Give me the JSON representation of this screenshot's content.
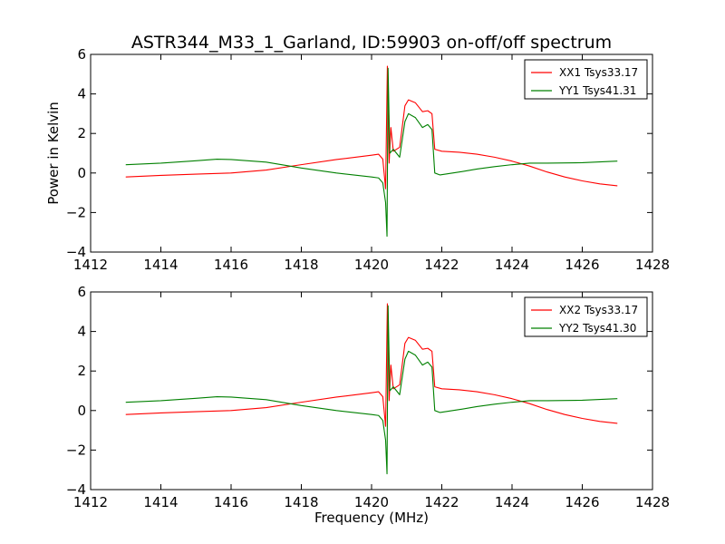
{
  "chart_data": [
    {
      "type": "line",
      "title": "ASTR344_M33_1_Garland, ID:59903 on-off/off spectrum",
      "ylabel": "Power in Kelvin",
      "xlabel": "",
      "xlim": [
        1412,
        1428
      ],
      "ylim": [
        -4,
        6
      ],
      "xticks": [
        "1412",
        "1414",
        "1416",
        "1418",
        "1420",
        "1422",
        "1424",
        "1426",
        "1428"
      ],
      "yticks": [
        "6",
        "4",
        "2",
        "0",
        "−2",
        "−4"
      ],
      "legend_position": "upper right",
      "grid": false,
      "series": [
        {
          "name": "XX1 Tsys33.17",
          "color": "#ff0000",
          "points": [
            [
              1413.0,
              -0.2
            ],
            [
              1414.0,
              -0.12
            ],
            [
              1415.0,
              -0.06
            ],
            [
              1416.0,
              0.0
            ],
            [
              1417.0,
              0.15
            ],
            [
              1418.0,
              0.42
            ],
            [
              1419.0,
              0.68
            ],
            [
              1420.0,
              0.9
            ],
            [
              1420.2,
              0.95
            ],
            [
              1420.32,
              0.7
            ],
            [
              1420.4,
              -0.8
            ],
            [
              1420.45,
              5.4
            ],
            [
              1420.5,
              0.5
            ],
            [
              1420.55,
              2.3
            ],
            [
              1420.62,
              1.1
            ],
            [
              1420.8,
              1.3
            ],
            [
              1420.95,
              3.4
            ],
            [
              1421.05,
              3.7
            ],
            [
              1421.25,
              3.55
            ],
            [
              1421.45,
              3.1
            ],
            [
              1421.6,
              3.15
            ],
            [
              1421.72,
              3.0
            ],
            [
              1421.8,
              1.2
            ],
            [
              1422.0,
              1.1
            ],
            [
              1422.5,
              1.05
            ],
            [
              1423.0,
              0.95
            ],
            [
              1423.5,
              0.8
            ],
            [
              1424.0,
              0.6
            ],
            [
              1424.5,
              0.35
            ],
            [
              1425.0,
              0.05
            ],
            [
              1425.5,
              -0.2
            ],
            [
              1426.0,
              -0.4
            ],
            [
              1426.5,
              -0.55
            ],
            [
              1427.0,
              -0.65
            ]
          ]
        },
        {
          "name": "YY1 Tsys41.31",
          "color": "#008000",
          "points": [
            [
              1413.0,
              0.42
            ],
            [
              1414.0,
              0.5
            ],
            [
              1415.0,
              0.62
            ],
            [
              1415.6,
              0.7
            ],
            [
              1416.0,
              0.68
            ],
            [
              1417.0,
              0.55
            ],
            [
              1418.0,
              0.25
            ],
            [
              1419.0,
              0.0
            ],
            [
              1420.0,
              -0.2
            ],
            [
              1420.2,
              -0.25
            ],
            [
              1420.32,
              -0.5
            ],
            [
              1420.4,
              -1.5
            ],
            [
              1420.44,
              -3.2
            ],
            [
              1420.47,
              5.3
            ],
            [
              1420.52,
              1.0
            ],
            [
              1420.62,
              1.2
            ],
            [
              1420.8,
              0.8
            ],
            [
              1420.95,
              2.6
            ],
            [
              1421.05,
              3.0
            ],
            [
              1421.25,
              2.8
            ],
            [
              1421.45,
              2.3
            ],
            [
              1421.6,
              2.45
            ],
            [
              1421.72,
              2.2
            ],
            [
              1421.8,
              0.0
            ],
            [
              1421.95,
              -0.1
            ],
            [
              1422.5,
              0.05
            ],
            [
              1423.0,
              0.2
            ],
            [
              1423.5,
              0.32
            ],
            [
              1424.0,
              0.42
            ],
            [
              1424.5,
              0.5
            ],
            [
              1425.0,
              0.5
            ],
            [
              1426.0,
              0.52
            ],
            [
              1427.0,
              0.6
            ]
          ]
        }
      ]
    },
    {
      "type": "line",
      "title": "",
      "ylabel": "",
      "xlabel": "Frequency (MHz)",
      "xlim": [
        1412,
        1428
      ],
      "ylim": [
        -4,
        6
      ],
      "xticks": [
        "1412",
        "1414",
        "1416",
        "1418",
        "1420",
        "1422",
        "1424",
        "1426",
        "1428"
      ],
      "yticks": [
        "6",
        "4",
        "2",
        "0",
        "−2",
        "−4"
      ],
      "legend_position": "upper right",
      "grid": false,
      "series": [
        {
          "name": "XX2 Tsys33.17",
          "color": "#ff0000",
          "points": [
            [
              1413.0,
              -0.2
            ],
            [
              1414.0,
              -0.12
            ],
            [
              1415.0,
              -0.06
            ],
            [
              1416.0,
              0.0
            ],
            [
              1417.0,
              0.15
            ],
            [
              1418.0,
              0.42
            ],
            [
              1419.0,
              0.68
            ],
            [
              1420.0,
              0.9
            ],
            [
              1420.2,
              0.95
            ],
            [
              1420.32,
              0.7
            ],
            [
              1420.4,
              -0.8
            ],
            [
              1420.45,
              5.4
            ],
            [
              1420.5,
              0.5
            ],
            [
              1420.55,
              2.3
            ],
            [
              1420.62,
              1.1
            ],
            [
              1420.8,
              1.3
            ],
            [
              1420.95,
              3.4
            ],
            [
              1421.05,
              3.7
            ],
            [
              1421.25,
              3.55
            ],
            [
              1421.45,
              3.1
            ],
            [
              1421.6,
              3.15
            ],
            [
              1421.72,
              3.0
            ],
            [
              1421.8,
              1.2
            ],
            [
              1422.0,
              1.1
            ],
            [
              1422.5,
              1.05
            ],
            [
              1423.0,
              0.95
            ],
            [
              1423.5,
              0.8
            ],
            [
              1424.0,
              0.6
            ],
            [
              1424.5,
              0.35
            ],
            [
              1425.0,
              0.05
            ],
            [
              1425.5,
              -0.2
            ],
            [
              1426.0,
              -0.4
            ],
            [
              1426.5,
              -0.55
            ],
            [
              1427.0,
              -0.65
            ]
          ]
        },
        {
          "name": "YY2 Tsys41.30",
          "color": "#008000",
          "points": [
            [
              1413.0,
              0.42
            ],
            [
              1414.0,
              0.5
            ],
            [
              1415.0,
              0.62
            ],
            [
              1415.6,
              0.7
            ],
            [
              1416.0,
              0.68
            ],
            [
              1417.0,
              0.55
            ],
            [
              1418.0,
              0.25
            ],
            [
              1419.0,
              0.0
            ],
            [
              1420.0,
              -0.2
            ],
            [
              1420.2,
              -0.25
            ],
            [
              1420.32,
              -0.5
            ],
            [
              1420.4,
              -1.5
            ],
            [
              1420.44,
              -3.2
            ],
            [
              1420.47,
              5.3
            ],
            [
              1420.52,
              1.0
            ],
            [
              1420.62,
              1.2
            ],
            [
              1420.8,
              0.8
            ],
            [
              1420.95,
              2.6
            ],
            [
              1421.05,
              3.0
            ],
            [
              1421.25,
              2.8
            ],
            [
              1421.45,
              2.3
            ],
            [
              1421.6,
              2.45
            ],
            [
              1421.72,
              2.2
            ],
            [
              1421.8,
              0.0
            ],
            [
              1421.95,
              -0.1
            ],
            [
              1422.5,
              0.05
            ],
            [
              1423.0,
              0.2
            ],
            [
              1423.5,
              0.32
            ],
            [
              1424.0,
              0.42
            ],
            [
              1424.5,
              0.5
            ],
            [
              1425.0,
              0.5
            ],
            [
              1426.0,
              0.52
            ],
            [
              1427.0,
              0.6
            ]
          ]
        }
      ]
    }
  ]
}
